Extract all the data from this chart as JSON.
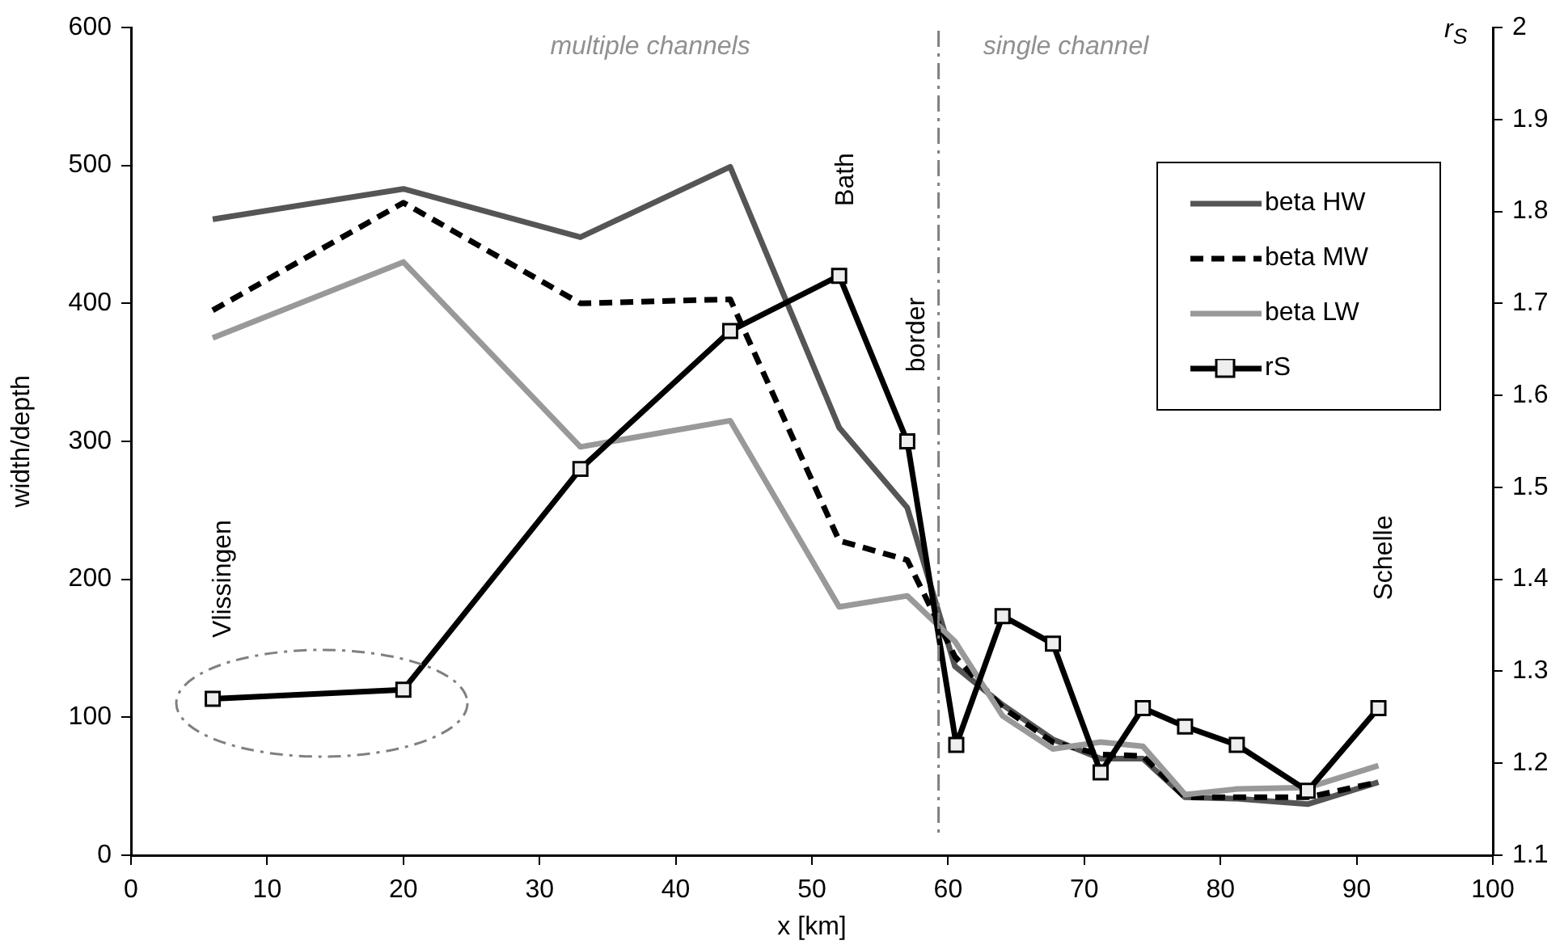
{
  "chart_data": {
    "type": "line",
    "xlabel": "x [km]",
    "ylabel": "width/depth",
    "y2label": "r$_{S}$",
    "xlim": [
      0,
      100
    ],
    "xticks": [
      0,
      10,
      20,
      30,
      40,
      50,
      60,
      70,
      80,
      90,
      100
    ],
    "ylim": [
      0,
      600
    ],
    "yticks": [
      0,
      100,
      200,
      300,
      400,
      500,
      600
    ],
    "y2lim": [
      1.1,
      2
    ],
    "y2ticks": [
      1.1,
      1.2,
      1.3,
      1.4,
      1.5,
      1.6,
      1.7,
      1.8,
      1.9,
      2
    ],
    "grid": false,
    "legend": "top right",
    "series": [
      {
        "name": "beta HW",
        "color": "#555555",
        "marker": "none",
        "line_style": "solid",
        "x": [
          6,
          20,
          33,
          44,
          52,
          57,
          60.5,
          64,
          67.7,
          71.2,
          74.3,
          77.4,
          81.2,
          86.4,
          91.6
        ],
        "values": [
          461,
          483,
          448,
          499,
          310,
          252,
          137,
          109,
          84,
          70,
          70,
          42,
          41,
          37,
          53
        ]
      },
      {
        "name": "beta MW",
        "color": "#000000",
        "marker": "none",
        "line_style": "dashed",
        "x": [
          6,
          20,
          33,
          44,
          52,
          57,
          60.5,
          64,
          67.7,
          71.2,
          74.3,
          77.4,
          81.2,
          86.4,
          91.6
        ],
        "values": [
          395,
          473,
          400,
          403,
          228,
          214,
          144,
          107,
          82,
          73,
          72,
          42,
          42,
          42,
          53
        ]
      },
      {
        "name": "beta LW",
        "color": "#999999",
        "marker": "none",
        "line_style": "solid",
        "x": [
          6,
          20,
          33,
          44,
          52,
          57,
          60.5,
          64,
          67.7,
          71.2,
          74.3,
          77.4,
          81.2,
          86.4,
          91.6
        ],
        "values": [
          375,
          430,
          296,
          315,
          180,
          188,
          155,
          101,
          77,
          82,
          79,
          44,
          48,
          49,
          65
        ]
      },
      {
        "name": "rS",
        "color": "#000000",
        "marker": "square",
        "line_style": "solid",
        "axis": "y2",
        "x": [
          6,
          20,
          33,
          44,
          52,
          57,
          60.6,
          64,
          67.7,
          71.2,
          74.3,
          77.4,
          81.2,
          86.4,
          91.6
        ],
        "values": [
          1.27,
          1.28,
          1.52,
          1.67,
          1.73,
          1.55,
          1.22,
          1.36,
          1.33,
          1.19,
          1.26,
          1.24,
          1.22,
          1.17,
          1.26
        ]
      }
    ],
    "ref_lines": [
      {
        "axis": "x",
        "value": 59.3,
        "label": "border",
        "color": "#808080",
        "line_style": "dashed"
      }
    ],
    "annotations": [
      "multiple channels",
      "single channel",
      "Vlissingen",
      "Bath",
      "Schelle"
    ]
  }
}
